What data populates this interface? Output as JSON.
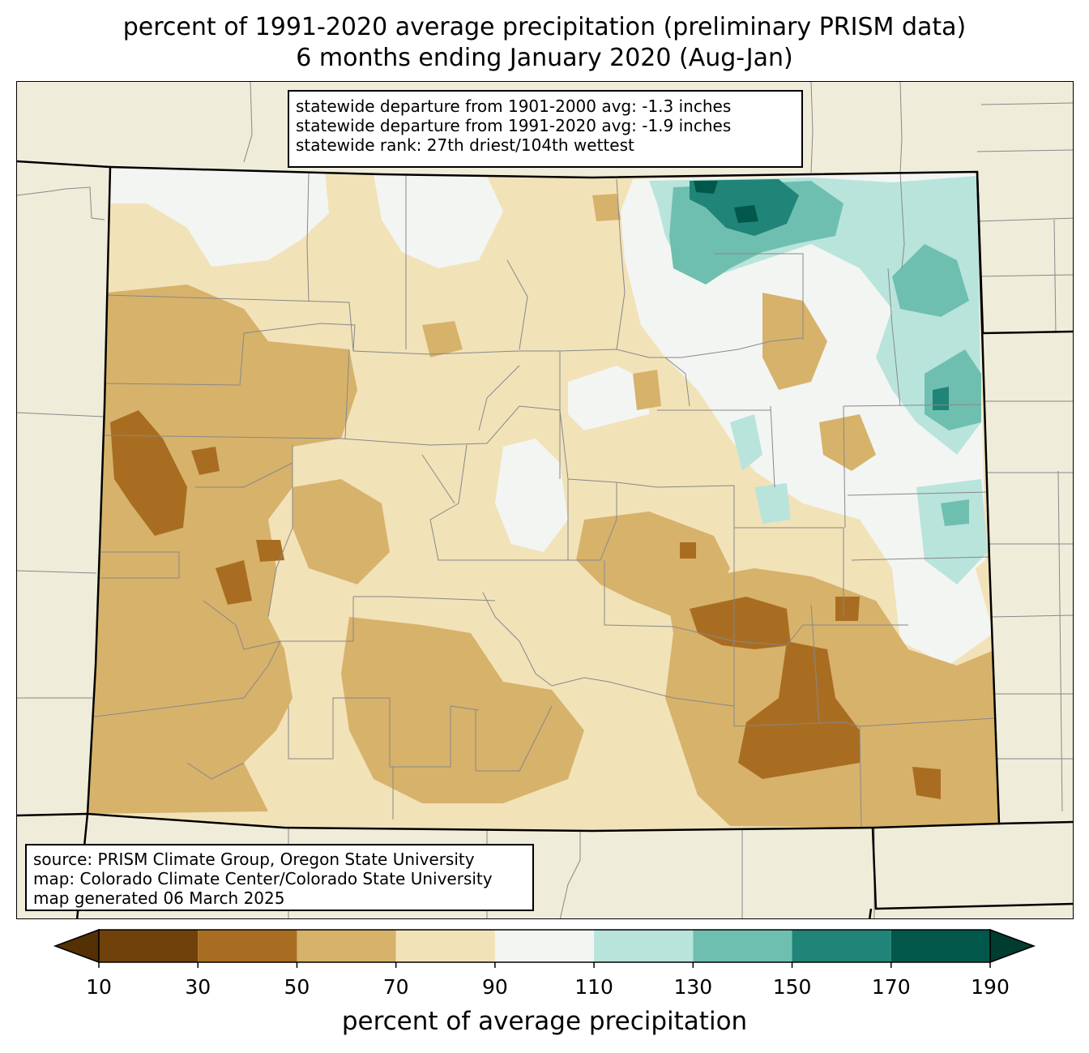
{
  "title": {
    "line1": "percent of 1991-2020 average precipitation (preliminary PRISM data)",
    "line2": "6 months ending January 2020 (Aug-Jan)"
  },
  "stats": {
    "line1": "statewide departure from 1901-2000 avg: -1.3 inches",
    "line2": "statewide departure from 1991-2020 avg: -1.9 inches",
    "line3": "statewide rank: 27th driest/104th wettest"
  },
  "source": {
    "line1": "source: PRISM Climate Group, Oregon State University",
    "line2": "map: Colorado Climate Center/Colorado State University",
    "line3": "map generated 06 March 2025"
  },
  "colorbar": {
    "label": "percent of average precipitation",
    "ticks": [
      "10",
      "30",
      "50",
      "70",
      "90",
      "110",
      "130",
      "150",
      "170",
      "190"
    ],
    "under_color": "#543005",
    "over_color": "#003c30",
    "bins": [
      {
        "from": 10,
        "to": 30,
        "color": "#70410b"
      },
      {
        "from": 30,
        "to": 50,
        "color": "#a96d22"
      },
      {
        "from": 50,
        "to": 70,
        "color": "#d7b26b"
      },
      {
        "from": 70,
        "to": 90,
        "color": "#f2e2b8"
      },
      {
        "from": 90,
        "to": 110,
        "color": "#f3f5f3"
      },
      {
        "from": 110,
        "to": 130,
        "color": "#b8e4dc"
      },
      {
        "from": 130,
        "to": 150,
        "color": "#6fbfb0"
      },
      {
        "from": 150,
        "to": 170,
        "color": "#208478"
      },
      {
        "from": 170,
        "to": 190,
        "color": "#01574a"
      }
    ]
  },
  "colors": {
    "land": "#efedda",
    "state_border": "#000000",
    "county_border": "#888888"
  }
}
